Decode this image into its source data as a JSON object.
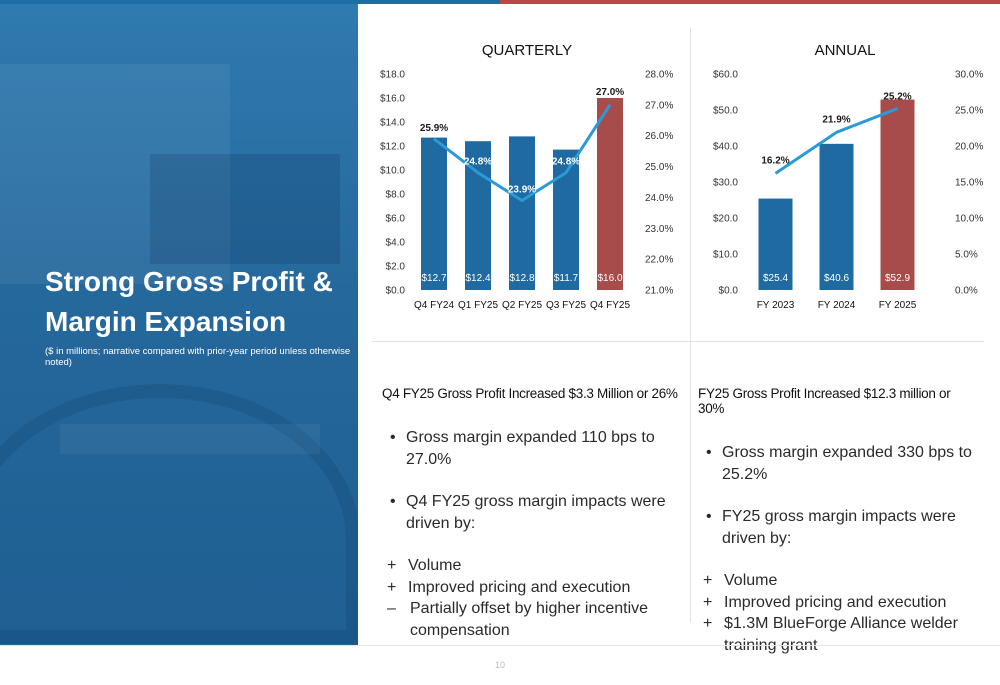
{
  "slide": {
    "title_line1": "Strong Gross Profit &",
    "title_line2": "Margin Expansion",
    "subtitle": "($ in millions; narrative compared with prior-year period unless otherwise noted)",
    "page_number": "10"
  },
  "colors": {
    "bar_blue": "#1f6aa0",
    "bar_red": "#a84b4b",
    "line_blue": "#2a9bd8",
    "panel_blue": "#25689c"
  },
  "chart_data": [
    {
      "type": "bar",
      "title": "QUARTERLY",
      "categories": [
        "Q4 FY24",
        "Q1 FY25",
        "Q2 FY25",
        "Q3 FY25",
        "Q4 FY25"
      ],
      "series": [
        {
          "values": [
            12.7,
            12.4,
            12.8,
            11.7,
            16.0
          ],
          "labels": [
            "$12.7",
            "$12.4",
            "$12.8",
            "$11.7",
            "$16.0"
          ],
          "highlight_index": 4
        },
        {
          "type": "line",
          "axis": "right",
          "values": [
            25.9,
            24.8,
            23.9,
            24.8,
            27.0
          ],
          "labels": [
            "25.9%",
            "24.8%",
            "23.9%",
            "24.8%",
            "27.0%"
          ]
        }
      ],
      "ylim": [
        0,
        18
      ],
      "ylim_right": [
        21,
        28
      ],
      "yticks": [
        "$0.0",
        "$2.0",
        "$4.0",
        "$6.0",
        "$8.0",
        "$10.0",
        "$12.0",
        "$14.0",
        "$16.0",
        "$18.0"
      ],
      "yticks_right": [
        "21.0%",
        "22.0%",
        "23.0%",
        "24.0%",
        "25.0%",
        "26.0%",
        "27.0%",
        "28.0%"
      ],
      "grid": false
    },
    {
      "type": "bar",
      "title": "ANNUAL",
      "categories": [
        "FY 2023",
        "FY 2024",
        "FY 2025"
      ],
      "series": [
        {
          "values": [
            25.4,
            40.6,
            52.9
          ],
          "labels": [
            "$25.4",
            "$40.6",
            "$52.9"
          ],
          "highlight_index": 2
        },
        {
          "type": "line",
          "axis": "right",
          "values": [
            16.2,
            21.9,
            25.2
          ],
          "labels": [
            "16.2%",
            "21.9%",
            "25.2%"
          ]
        }
      ],
      "ylim": [
        0,
        60
      ],
      "ylim_right": [
        0,
        30
      ],
      "yticks": [
        "$0.0",
        "$10.0",
        "$20.0",
        "$30.0",
        "$40.0",
        "$50.0",
        "$60.0"
      ],
      "yticks_right": [
        "0.0%",
        "5.0%",
        "10.0%",
        "15.0%",
        "20.0%",
        "25.0%",
        "30.0%"
      ],
      "grid": false
    }
  ],
  "quarterly_section": {
    "heading": "Q4 FY25 Gross Profit Increased $3.3 Million or 26%",
    "bullets": [
      "Gross margin expanded 110 bps to 27.0%",
      "Q4 FY25 gross margin impacts were driven by:"
    ],
    "impacts": [
      {
        "symbol": "+",
        "text": "Volume"
      },
      {
        "symbol": "+",
        "text": "Improved pricing and execution"
      },
      {
        "symbol": "–",
        "text": "Partially offset by higher incentive compensation"
      }
    ]
  },
  "annual_section": {
    "heading": "FY25 Gross Profit Increased $12.3 million or 30%",
    "bullets": [
      "Gross margin expanded 330 bps to 25.2%",
      "FY25 gross margin impacts were driven by:"
    ],
    "impacts": [
      {
        "symbol": "+",
        "text": "Volume"
      },
      {
        "symbol": "+",
        "text": "Improved pricing and execution"
      },
      {
        "symbol": "+",
        "text": "$1.3M BlueForge Alliance welder training grant"
      }
    ]
  }
}
